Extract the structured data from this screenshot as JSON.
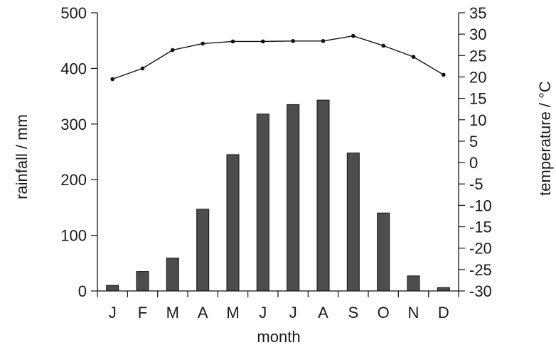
{
  "chart_data": {
    "type": "bar",
    "xlabel": "month",
    "categories": [
      "J",
      "F",
      "M",
      "A",
      "M",
      "J",
      "J",
      "A",
      "S",
      "O",
      "N",
      "D"
    ],
    "series": [
      {
        "type": "bar",
        "axis": "left",
        "values": [
          10,
          35,
          59,
          147,
          245,
          318,
          335,
          343,
          248,
          140,
          27,
          6
        ]
      },
      {
        "type": "line",
        "axis": "right",
        "values": [
          19.5,
          22,
          26.3,
          27.8,
          28.3,
          28.3,
          28.4,
          28.4,
          29.6,
          27.3,
          24.7,
          20.5
        ]
      }
    ],
    "left_axis": {
      "label": "rainfall / mm",
      "ylim": [
        0,
        500
      ],
      "ticks": [
        0,
        100,
        200,
        300,
        400,
        500
      ]
    },
    "right_axis": {
      "label": "temperature / °C",
      "ylim": [
        -30,
        35
      ],
      "ticks": [
        -30,
        -25,
        -20,
        -15,
        -10,
        -5,
        0,
        5,
        10,
        15,
        20,
        25,
        30,
        35
      ]
    },
    "grid": false,
    "legend": "none",
    "colors": {
      "bar_fill": "#4d4d4d",
      "bar_stroke": "#111111",
      "line": "#111111",
      "axis": "#111111",
      "text": "#1a1a1a"
    }
  }
}
